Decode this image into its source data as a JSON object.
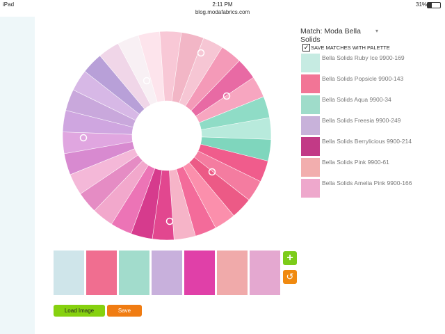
{
  "status_bar": {
    "device": "iPad",
    "time": "2:11 PM",
    "url": "blog.modafabrics.com",
    "battery": "31%"
  },
  "match_panel": {
    "label": "Match: Moda Bella Solids",
    "checkbox_label": "SAVE MATCHES WITH PALETTE",
    "items": [
      {
        "name": "Bella Solids Ruby Ice 9900-169",
        "color": "#c6ebe2"
      },
      {
        "name": "Bella Solids Popsicle 9900-143",
        "color": "#f27596"
      },
      {
        "name": "Bella Solids Aqua 9900-34",
        "color": "#9fdcca"
      },
      {
        "name": "Bella Solids Freesia 9900-249",
        "color": "#c8b2da"
      },
      {
        "name": "Bella Solids Berrylicious 9900-214",
        "color": "#c23a86"
      },
      {
        "name": "Bella Solids Pink 9900-61",
        "color": "#f2aeae"
      },
      {
        "name": "Bella Solids Amelia Pink 9900-166",
        "color": "#eea8cc"
      }
    ]
  },
  "palette": [
    "#cfe5ea",
    "#f06e90",
    "#a2dccc",
    "#c8b0dc",
    "#e040a8",
    "#f0aaaa",
    "#e4a8d0"
  ],
  "buttons": {
    "load": "Load Image",
    "save": "Save"
  }
}
